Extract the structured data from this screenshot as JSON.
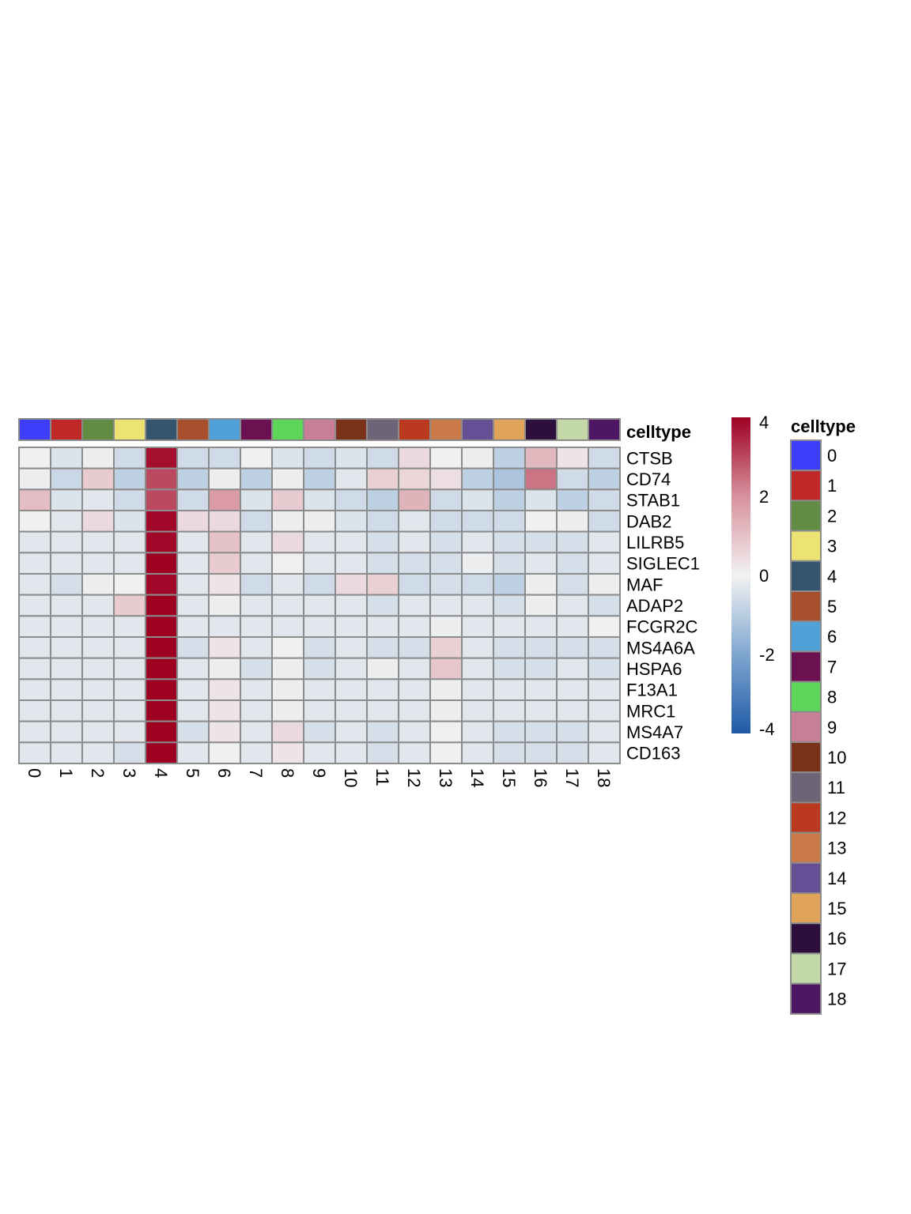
{
  "chart_data": {
    "type": "heatmap",
    "title": "",
    "rows": [
      "CTSB",
      "CD74",
      "STAB1",
      "DAB2",
      "LILRB5",
      "SIGLEC1",
      "MAF",
      "ADAP2",
      "FCGR2C",
      "MS4A6A",
      "HSPA6",
      "F13A1",
      "MRC1",
      "MS4A7",
      "CD163"
    ],
    "columns": [
      "0",
      "1",
      "2",
      "3",
      "4",
      "5",
      "6",
      "7",
      "8",
      "9",
      "10",
      "11",
      "12",
      "13",
      "14",
      "15",
      "16",
      "17",
      "18"
    ],
    "values": [
      [
        0.05,
        -0.4,
        -0.1,
        -0.6,
        3.8,
        -0.6,
        -0.6,
        0.05,
        -0.4,
        -0.6,
        -0.4,
        -0.6,
        0.5,
        0.05,
        -0.1,
        -0.9,
        1.2,
        0.3,
        -0.6
      ],
      [
        -0.1,
        -0.7,
        0.8,
        -0.9,
        3.0,
        -0.9,
        -0.1,
        -0.9,
        -0.1,
        -0.9,
        -0.3,
        0.7,
        0.6,
        0.4,
        -0.9,
        -1.2,
        2.4,
        -0.6,
        -0.9
      ],
      [
        1.1,
        -0.4,
        -0.3,
        -0.6,
        3.0,
        -0.6,
        1.8,
        -0.4,
        0.8,
        -0.4,
        -0.6,
        -0.9,
        1.3,
        -0.6,
        -0.4,
        -0.9,
        -0.4,
        -0.9,
        -0.6
      ],
      [
        0.05,
        -0.3,
        0.5,
        -0.4,
        3.9,
        0.5,
        0.5,
        -0.6,
        -0.1,
        -0.1,
        -0.4,
        -0.6,
        -0.3,
        -0.6,
        -0.6,
        -0.6,
        0.05,
        -0.1,
        -0.6
      ],
      [
        -0.3,
        -0.3,
        -0.3,
        -0.3,
        3.9,
        -0.3,
        1.0,
        -0.3,
        0.5,
        -0.3,
        -0.3,
        -0.5,
        -0.3,
        -0.5,
        -0.3,
        -0.5,
        -0.5,
        -0.5,
        -0.3
      ],
      [
        -0.3,
        -0.3,
        -0.3,
        -0.3,
        4.0,
        -0.3,
        0.8,
        -0.3,
        0.05,
        -0.3,
        -0.3,
        -0.5,
        -0.5,
        -0.5,
        -0.1,
        -0.5,
        -0.3,
        -0.5,
        -0.3
      ],
      [
        -0.3,
        -0.5,
        -0.1,
        0.05,
        3.9,
        -0.3,
        0.3,
        -0.6,
        -0.3,
        -0.6,
        0.5,
        0.7,
        -0.6,
        -0.5,
        -0.6,
        -0.9,
        -0.1,
        -0.5,
        -0.1
      ],
      [
        -0.3,
        -0.3,
        -0.3,
        0.8,
        4.0,
        -0.3,
        -0.1,
        -0.3,
        -0.3,
        -0.3,
        -0.3,
        -0.5,
        -0.3,
        -0.3,
        -0.3,
        -0.5,
        -0.1,
        -0.3,
        -0.5
      ],
      [
        -0.3,
        -0.3,
        -0.3,
        -0.3,
        4.0,
        -0.3,
        -0.3,
        -0.3,
        -0.3,
        -0.3,
        -0.3,
        -0.3,
        -0.3,
        -0.1,
        -0.3,
        -0.3,
        -0.3,
        -0.3,
        0.05
      ],
      [
        -0.3,
        -0.3,
        -0.3,
        -0.3,
        4.0,
        -0.5,
        0.3,
        -0.3,
        0.05,
        -0.5,
        -0.3,
        -0.5,
        -0.5,
        0.7,
        -0.3,
        -0.5,
        -0.5,
        -0.5,
        -0.5
      ],
      [
        -0.3,
        -0.3,
        -0.3,
        -0.3,
        4.0,
        -0.3,
        -0.1,
        -0.5,
        -0.1,
        -0.5,
        -0.3,
        -0.1,
        -0.3,
        0.9,
        -0.3,
        -0.5,
        -0.5,
        -0.3,
        -0.5
      ],
      [
        -0.3,
        -0.3,
        -0.3,
        -0.3,
        4.0,
        -0.3,
        0.3,
        -0.3,
        -0.1,
        -0.3,
        -0.3,
        -0.3,
        -0.3,
        -0.1,
        -0.3,
        -0.3,
        -0.3,
        -0.3,
        -0.3
      ],
      [
        -0.3,
        -0.3,
        -0.3,
        -0.3,
        4.0,
        -0.3,
        0.3,
        -0.3,
        -0.1,
        -0.3,
        -0.3,
        -0.3,
        -0.3,
        -0.1,
        -0.3,
        -0.3,
        -0.3,
        -0.3,
        -0.3
      ],
      [
        -0.3,
        -0.3,
        -0.3,
        -0.3,
        4.0,
        -0.5,
        0.3,
        -0.3,
        0.5,
        -0.5,
        -0.3,
        -0.5,
        -0.3,
        0.05,
        -0.3,
        -0.5,
        -0.5,
        -0.5,
        -0.3
      ],
      [
        -0.3,
        -0.3,
        -0.3,
        -0.5,
        4.0,
        -0.3,
        0.05,
        -0.3,
        0.3,
        -0.3,
        -0.3,
        -0.5,
        -0.3,
        0.05,
        -0.3,
        -0.5,
        -0.5,
        -0.5,
        -0.3
      ]
    ],
    "color_range": [
      -4,
      4
    ],
    "colorbar_ticks": [
      "4",
      "2",
      "0",
      "-2",
      "-4"
    ],
    "colorbar_tick_values": [
      4,
      2,
      0,
      -2,
      -4
    ],
    "colorscale": [
      "#1f5aa6",
      "#7fa6d0",
      "#f2f2f2",
      "#d7919d",
      "#9e0022"
    ],
    "annotation": {
      "label": "celltype",
      "legend_title": "celltype",
      "legend_placement": "right",
      "categories": [
        "0",
        "1",
        "2",
        "3",
        "4",
        "5",
        "6",
        "7",
        "8",
        "9",
        "10",
        "11",
        "12",
        "13",
        "14",
        "15",
        "16",
        "17",
        "18"
      ],
      "colors": [
        "#3f3ffb",
        "#c02828",
        "#628b44",
        "#ede373",
        "#35556e",
        "#a94f2d",
        "#4fa1d8",
        "#6b1152",
        "#5dd55a",
        "#c97f95",
        "#7b321b",
        "#6d6477",
        "#bb3a1f",
        "#cb7b49",
        "#674f96",
        "#dfa35a",
        "#2d0f3e",
        "#c3d9a8",
        "#4e1662"
      ]
    }
  }
}
